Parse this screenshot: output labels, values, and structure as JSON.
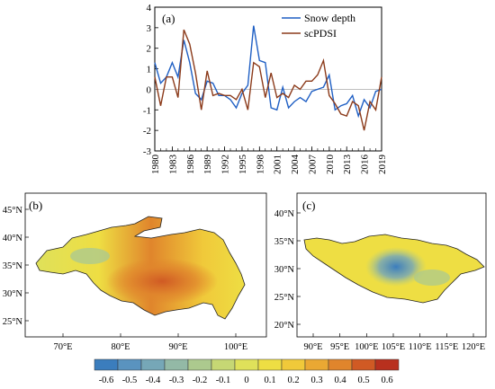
{
  "chart_data": [
    {
      "type": "line",
      "panel": "(a)",
      "x": [
        1980,
        1981,
        1982,
        1983,
        1984,
        1985,
        1986,
        1987,
        1988,
        1989,
        1990,
        1991,
        1992,
        1993,
        1994,
        1995,
        1996,
        1997,
        1998,
        1999,
        2000,
        2001,
        2002,
        2003,
        2004,
        2005,
        2006,
        2007,
        2008,
        2009,
        2010,
        2011,
        2012,
        2013,
        2014,
        2015,
        2016,
        2017,
        2018,
        2019
      ],
      "x_ticks": [
        "1980",
        "1983",
        "1986",
        "1989",
        "1992",
        "1995",
        "1998",
        "2001",
        "2004",
        "2007",
        "2010",
        "2013",
        "2016",
        "2019"
      ],
      "ylim": [
        -3,
        4
      ],
      "y_ticks": [
        "-3",
        "-2",
        "-1",
        "0",
        "1",
        "2",
        "3",
        "4"
      ],
      "legend_position": "top-right",
      "series": [
        {
          "name": "Snow depth",
          "color": "#1f5fc4",
          "values": [
            1.3,
            0.3,
            0.6,
            1.3,
            0.6,
            2.4,
            1.3,
            -0.2,
            -0.5,
            0.4,
            0.3,
            -0.3,
            -0.3,
            -0.5,
            -0.9,
            -0.2,
            0.2,
            3.1,
            1.4,
            1.3,
            -0.9,
            -1.0,
            0.1,
            -0.9,
            -0.6,
            -0.4,
            -0.6,
            -0.1,
            0.0,
            0.1,
            0.7,
            -1.0,
            -0.8,
            -0.7,
            -0.3,
            -1.3,
            -0.5,
            -0.9,
            -0.1,
            0.0
          ]
        },
        {
          "name": "scPDSI",
          "color": "#8b3a1a",
          "values": [
            0.6,
            -0.8,
            0.6,
            0.6,
            -0.4,
            2.9,
            2.2,
            0.8,
            -1.0,
            0.9,
            -0.3,
            -0.2,
            -0.3,
            -0.3,
            -0.5,
            0.0,
            -1.0,
            1.3,
            1.1,
            -0.4,
            0.8,
            -0.4,
            -0.2,
            -0.4,
            0.2,
            0.0,
            0.4,
            0.4,
            0.7,
            1.4,
            -0.3,
            -0.7,
            -1.2,
            -1.3,
            -0.6,
            -0.8,
            -2.0,
            -0.6,
            -1.0,
            0.6
          ]
        }
      ]
    },
    {
      "type": "heatmap",
      "panel": "(b)",
      "x_ticks": [
        "70°E",
        "80°E",
        "90°E",
        "100°E"
      ],
      "y_ticks": [
        "25°N",
        "30°N",
        "35°N",
        "40°N",
        "45°N"
      ]
    },
    {
      "type": "heatmap",
      "panel": "(c)",
      "x_ticks": [
        "90°E",
        "95°E",
        "100°E",
        "105°E",
        "110°E",
        "115°E",
        "120°E"
      ],
      "y_ticks": [
        "20°N",
        "25°N",
        "30°N",
        "35°N",
        "40°N"
      ]
    }
  ],
  "colorbar": {
    "labels": [
      "-0.6",
      "-0.5",
      "-0.4",
      "-0.3",
      "-0.2",
      "-0.1",
      "0",
      "0.1",
      "0.2",
      "0.3",
      "0.4",
      "0.5",
      "0.6"
    ],
    "colors": [
      "#3b7dbd",
      "#5a93bf",
      "#76a7b7",
      "#93b9a6",
      "#acc98e",
      "#c6d774",
      "#dfe15a",
      "#eede43",
      "#f0c93a",
      "#eaa833",
      "#e0852c",
      "#d05a24",
      "#b8301e"
    ]
  }
}
